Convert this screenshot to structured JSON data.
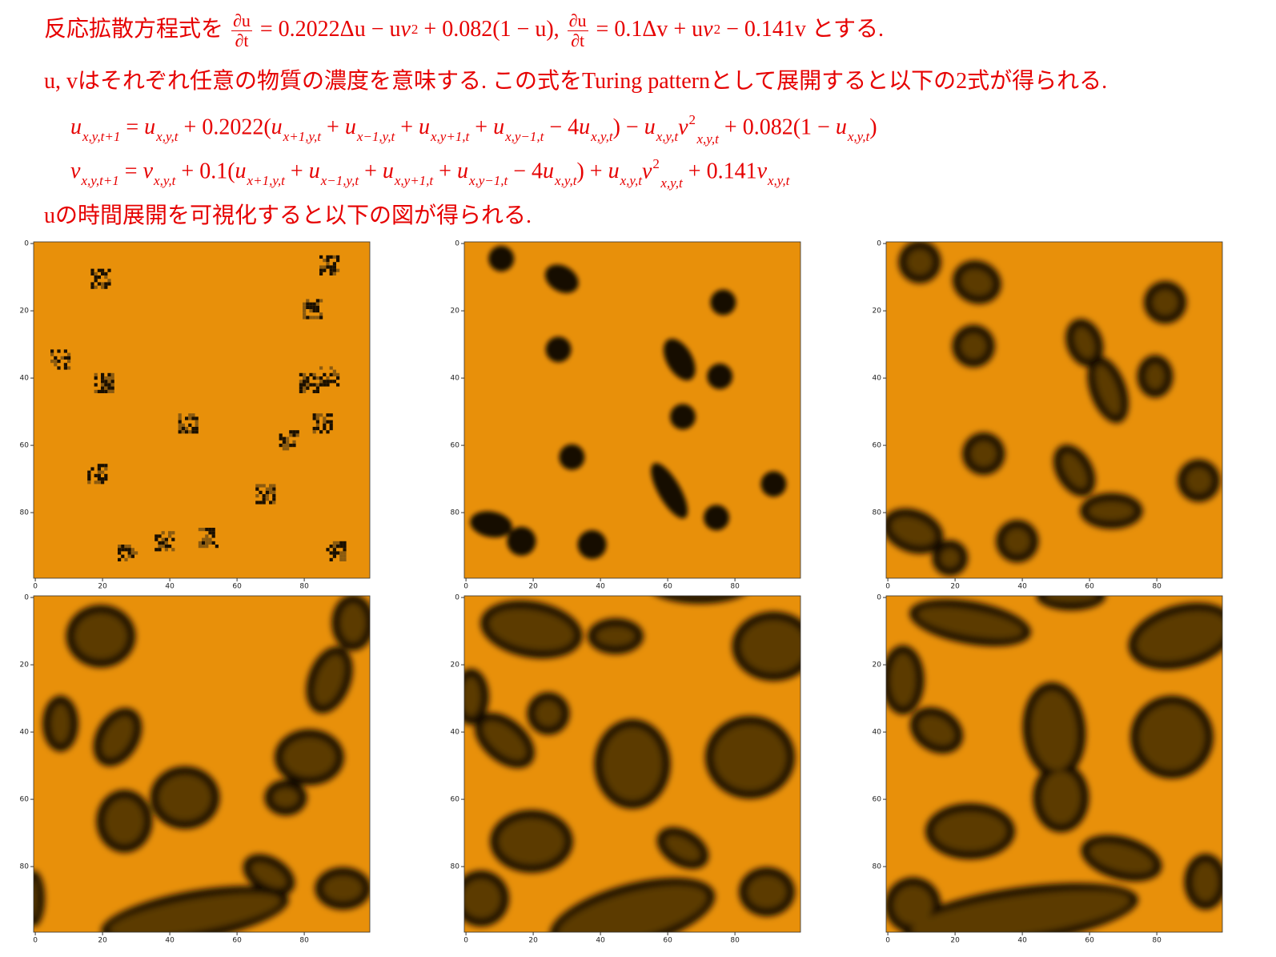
{
  "lines": [
    [
      "反応拡散方程式を ",
      {
        "num": "∂u",
        "den": "∂t"
      },
      " = 0.2022Δu − u",
      {
        "base": "v",
        "sup": "2"
      },
      " + 0.082(1 − u), ",
      {
        "num": "∂u",
        "den": "∂t"
      },
      " = 0.1Δv + u",
      {
        "base": "v",
        "sup": "2"
      },
      " − 0.141v とする."
    ],
    [
      "u, vはそれぞれ任意の物質の濃度を意味する. この式をTuring patternとして展開すると以下の2式が得られる."
    ],
    [
      {
        "base": "u",
        "sub": "x,y,t+1"
      },
      " = ",
      {
        "base": "u",
        "sub": "x,y,t"
      },
      " + 0.2022(",
      {
        "base": "u",
        "sub": "x+1,y,t"
      },
      " + ",
      {
        "base": "u",
        "sub": "x−1,y,t"
      },
      " + ",
      {
        "base": "u",
        "sub": "x,y+1,t"
      },
      " + ",
      {
        "base": "u",
        "sub": "x,y−1,t"
      },
      " − 4",
      {
        "base": "u",
        "sub": "x,y,t"
      },
      ") − ",
      {
        "base": "u",
        "sub": "x,y,t"
      },
      {
        "base": "v",
        "sup": "2",
        "sub": "x,y,t"
      },
      " + 0.082(1 − ",
      {
        "base": "u",
        "sub": "x,y,t"
      },
      ")"
    ],
    [
      {
        "base": "v",
        "sub": "x,y,t+1"
      },
      " = ",
      {
        "base": "v",
        "sub": "x,y,t"
      },
      " + 0.1(",
      {
        "base": "u",
        "sub": "x+1,y,t"
      },
      " + ",
      {
        "base": "u",
        "sub": "x−1,y,t"
      },
      " + ",
      {
        "base": "u",
        "sub": "x,y+1,t"
      },
      " + ",
      {
        "base": "u",
        "sub": "x,y−1,t"
      },
      " − 4",
      {
        "base": "u",
        "sub": "x,y,t"
      },
      ") + ",
      {
        "base": "u",
        "sub": "x,y,t"
      },
      {
        "base": "v",
        "sup": "2",
        "sub": "x,y,t"
      },
      " +  0.141",
      {
        "base": "v",
        "sub": "x,y,t"
      }
    ],
    [
      "uの時間展開を可視化すると以下の図が得られる."
    ]
  ],
  "panels": [
    {
      "xlim": [
        -0.5,
        99.5
      ],
      "ylim": [
        99.5,
        -0.5
      ],
      "xticks": [
        0,
        20,
        40,
        60,
        80
      ],
      "yticks": [
        0,
        20,
        40,
        60,
        80
      ]
    },
    {
      "xlim": [
        -0.5,
        99.5
      ],
      "ylim": [
        99.5,
        -0.5
      ],
      "xticks": [
        0,
        20,
        40,
        60,
        80
      ],
      "yticks": [
        0,
        20,
        40,
        60,
        80
      ]
    },
    {
      "xlim": [
        -0.5,
        99.5
      ],
      "ylim": [
        99.5,
        -0.5
      ],
      "xticks": [
        0,
        20,
        40,
        60,
        80
      ],
      "yticks": [
        0,
        20,
        40,
        60,
        80
      ]
    },
    {
      "xlim": [
        -0.5,
        99.5
      ],
      "ylim": [
        99.5,
        -0.5
      ],
      "xticks": [
        0,
        20,
        40,
        60,
        80
      ],
      "yticks": [
        0,
        20,
        40,
        60,
        80
      ]
    },
    {
      "xlim": [
        -0.5,
        99.5
      ],
      "ylim": [
        99.5,
        -0.5
      ],
      "xticks": [
        0,
        20,
        40,
        60,
        80
      ],
      "yticks": [
        0,
        20,
        40,
        60,
        80
      ]
    },
    {
      "xlim": [
        -0.5,
        99.5
      ],
      "ylim": [
        99.5,
        -0.5
      ],
      "xticks": [
        0,
        20,
        40,
        60,
        80
      ],
      "yticks": [
        0,
        20,
        40,
        60,
        80
      ]
    }
  ]
}
